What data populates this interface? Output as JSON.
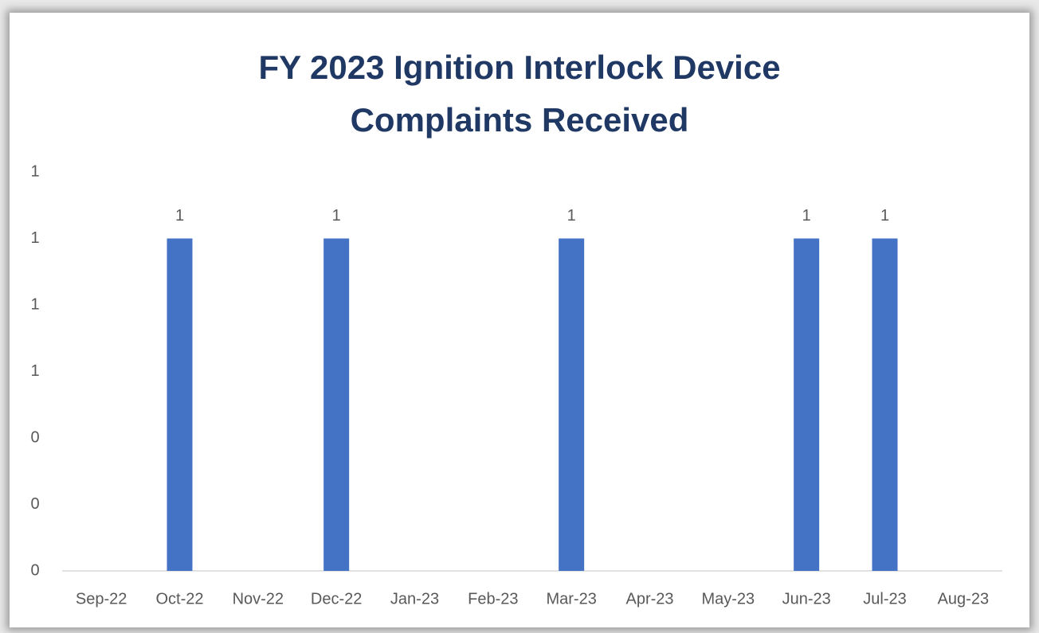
{
  "chart_data": {
    "type": "bar",
    "title": "FY 2023 Ignition Interlock Device Complaints Received",
    "categories": [
      "Sep-22",
      "Oct-22",
      "Nov-22",
      "Dec-22",
      "Jan-23",
      "Feb-23",
      "Mar-23",
      "Apr-23",
      "May-23",
      "Jun-23",
      "Jul-23",
      "Aug-23"
    ],
    "values": [
      0,
      1,
      0,
      1,
      0,
      0,
      1,
      0,
      0,
      1,
      1,
      0
    ],
    "color": "#4472c4",
    "ylim": [
      0,
      1.2
    ],
    "yticks": [
      0,
      {
        "value": 0.2,
        "label": "0"
      },
      {
        "value": 0.4,
        "label": "0"
      },
      {
        "value": 0.6,
        "label": "1"
      },
      {
        "value": 0.8,
        "label": "1"
      },
      {
        "value": 1.0,
        "label": "1"
      },
      {
        "value": 1.2,
        "label": "1"
      }
    ],
    "grid": false
  }
}
